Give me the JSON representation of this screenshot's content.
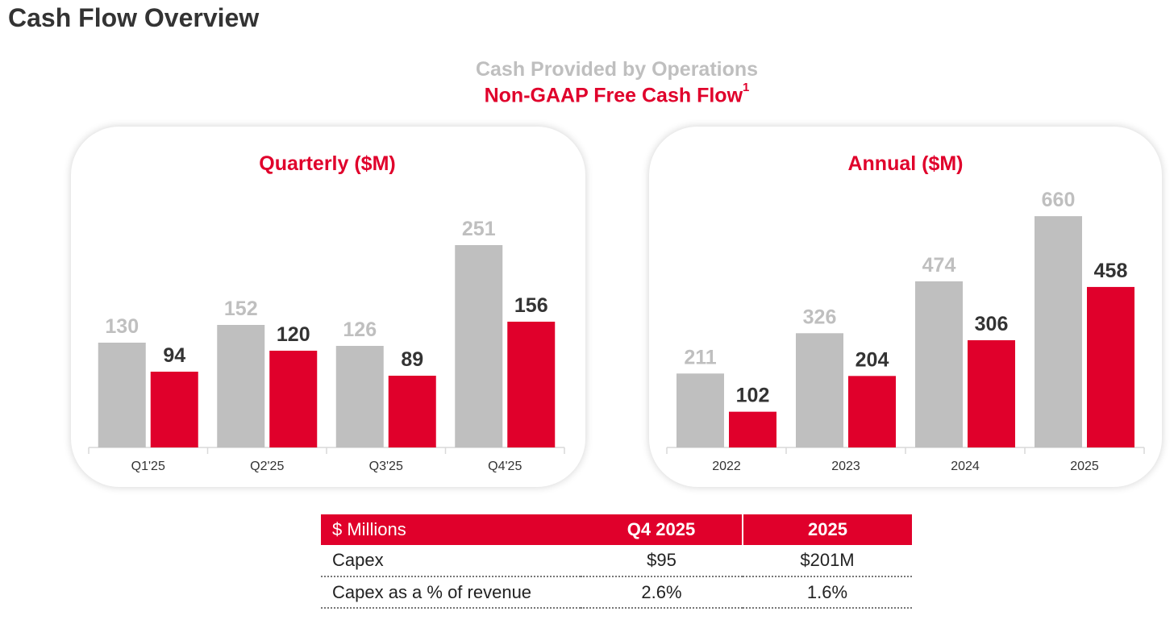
{
  "page": {
    "title": "Cash Flow Overview"
  },
  "legend": {
    "operations": "Cash Provided by Operations",
    "fcf": "Non-GAAP Free Cash Flow",
    "fcf_footnote": "1"
  },
  "colors": {
    "operations": "#bfbfbf",
    "fcf": "#e0002b",
    "axis": "#d9d9d9"
  },
  "chart_data": [
    {
      "type": "bar",
      "title": "Quarterly ($M)",
      "categories": [
        "Q1'25",
        "Q2'25",
        "Q3'25",
        "Q4'25"
      ],
      "series": [
        {
          "name": "Cash Provided by Operations",
          "values": [
            130,
            152,
            126,
            251
          ]
        },
        {
          "name": "Non-GAAP Free Cash Flow",
          "values": [
            94,
            120,
            89,
            156
          ]
        }
      ],
      "ylim": [
        0,
        300
      ],
      "grid": false,
      "legend": "top"
    },
    {
      "type": "bar",
      "title": "Annual ($M)",
      "categories": [
        "2022",
        "2023",
        "2024",
        "2025"
      ],
      "series": [
        {
          "name": "Cash Provided by Operations",
          "values": [
            211,
            326,
            474,
            660
          ]
        },
        {
          "name": "Non-GAAP Free Cash Flow",
          "values": [
            102,
            204,
            306,
            458
          ]
        }
      ],
      "ylim": [
        0,
        750
      ],
      "grid": false,
      "legend": "top"
    }
  ],
  "table": {
    "headers": [
      "$ Millions",
      "Q4 2025",
      "2025"
    ],
    "rows": [
      [
        "Capex",
        "$95",
        "$201M"
      ],
      [
        "Capex as a % of revenue",
        "2.6%",
        "1.6%"
      ]
    ]
  }
}
